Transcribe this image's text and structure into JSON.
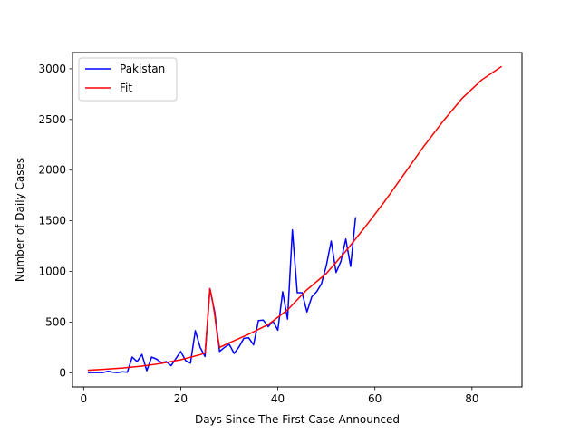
{
  "chart_data": {
    "type": "line",
    "title": "",
    "xlabel": "Days Since The First Case Announced",
    "ylabel": "Number of Daily Cases",
    "xlim": [
      -2.3,
      90.3
    ],
    "ylim": [
      -140,
      3160
    ],
    "x_ticks": [
      0,
      20,
      40,
      60,
      80
    ],
    "y_ticks": [
      0,
      500,
      1000,
      1500,
      2000,
      2500,
      3000
    ],
    "grid": false,
    "legend_position": "upper-left",
    "series": [
      {
        "name": "Pakistan",
        "color": "#0000ff",
        "x": [
          1,
          2,
          3,
          4,
          5,
          6,
          7,
          8,
          9,
          10,
          11,
          12,
          13,
          14,
          15,
          16,
          17,
          18,
          19,
          20,
          21,
          22,
          23,
          24,
          25,
          26,
          27,
          28,
          29,
          30,
          31,
          32,
          33,
          34,
          35,
          36,
          37,
          38,
          39,
          40,
          41,
          42,
          43,
          44,
          45,
          46,
          47,
          48,
          49,
          50,
          51,
          52,
          53,
          54,
          55,
          56
        ],
        "y": [
          2,
          2,
          3,
          2,
          15,
          5,
          2,
          10,
          5,
          155,
          110,
          180,
          20,
          155,
          135,
          100,
          110,
          70,
          140,
          210,
          120,
          95,
          415,
          250,
          160,
          830,
          600,
          210,
          250,
          280,
          190,
          255,
          340,
          345,
          275,
          515,
          520,
          455,
          510,
          420,
          800,
          530,
          1410,
          790,
          790,
          600,
          750,
          800,
          880,
          1060,
          1300,
          990,
          1100,
          1320,
          1050,
          1530
        ]
      },
      {
        "name": "Fit",
        "color": "#ff0000",
        "x": [
          1,
          4,
          8,
          12,
          16,
          20,
          24,
          25,
          25.5,
          26,
          26.5,
          27,
          27.5,
          28,
          30,
          34,
          38,
          42,
          46,
          50,
          54,
          58,
          62,
          66,
          70,
          74,
          78,
          82,
          86
        ],
        "y": [
          25,
          33,
          47,
          66,
          92,
          128,
          178,
          195,
          500,
          830,
          720,
          570,
          380,
          250,
          295,
          380,
          475,
          620,
          820,
          980,
          1200,
          1440,
          1690,
          1960,
          2230,
          2480,
          2710,
          2890,
          3020
        ]
      }
    ]
  }
}
